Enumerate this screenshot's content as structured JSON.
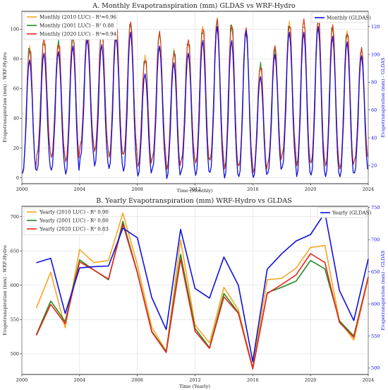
{
  "chart_data": [
    {
      "type": "line",
      "title": "A. Monthly Evapotranspiration (mm) GLDAS vs WRF-Hydro",
      "xlabel": "Time (Monthly)",
      "ylabel": "Evapotranspiration (mm) - WRF-Hydro",
      "ylabel_right": "Evapotranspiration (mm) - GLDAS",
      "x_ticks": [
        "2000",
        "2004",
        "2008",
        "2012",
        "2016",
        "2020",
        "2024"
      ],
      "y_ticks_left": [
        "0",
        "20",
        "40",
        "60",
        "80",
        "100"
      ],
      "y_ticks_right": [
        "20",
        "40",
        "60",
        "80",
        "100",
        "120"
      ],
      "xlim": [
        2000,
        2024
      ],
      "ylim_left": [
        -4,
        112
      ],
      "ylim_right": [
        7,
        131
      ],
      "legend_left": "top-left",
      "legend_right": "top-right",
      "grid": true,
      "series": [
        {
          "name": "Monthly (2010 LUC) - R²=0.96",
          "color": "#f5a623",
          "axis": "left"
        },
        {
          "name": "Monthly (2001 LUC) - R²  0.88",
          "color": "#1f8a1f",
          "axis": "left"
        },
        {
          "name": "Monthly (2020 LUC) - R²=0.94",
          "color": "#e8261e",
          "axis": "left"
        },
        {
          "name": "Monthly (GLDAS)",
          "color": "#1010e0",
          "axis": "right"
        }
      ],
      "annual_peaks_left": [
        88,
        93,
        91,
        96,
        99,
        100,
        103,
        104,
        81,
        97,
        86,
        92,
        102,
        106,
        104,
        100,
        76,
        88,
        104,
        106,
        108,
        102,
        99,
        86
      ],
      "annual_troughs_left": [
        1,
        14,
        12,
        9,
        20,
        16,
        12,
        14,
        6,
        12,
        4,
        10,
        8,
        10,
        4,
        6,
        2,
        8,
        14,
        6,
        8,
        6,
        4,
        10
      ],
      "annual_peaks_right": [
        96,
        101,
        102,
        106,
        111,
        107,
        113,
        116,
        86,
        106,
        94,
        101,
        110,
        120,
        110,
        117,
        84,
        100,
        116,
        116,
        120,
        113,
        109,
        99
      ],
      "annual_troughs_right": [
        13,
        15,
        15,
        12,
        24,
        18,
        16,
        14,
        11,
        16,
        9,
        14,
        11,
        13,
        9,
        10,
        10,
        13,
        17,
        10,
        11,
        10,
        10,
        13
      ]
    },
    {
      "type": "line",
      "title": "B. Yearly Evapotranspiration (mm) WRF-Hydro vs GLDAS",
      "xlabel": "Time (Yearly)",
      "ylabel": "Evapotranspiration (mm) - WRF-Hydro",
      "ylabel_right": "Evapotranspiration (mm) - GLDAS",
      "x_ticks": [
        "2000",
        "2004",
        "2008",
        "2012",
        "2016",
        "2020",
        "2024"
      ],
      "y_ticks_left": [
        "500",
        "550",
        "600",
        "650",
        "700"
      ],
      "y_ticks_right": [
        "500",
        "550",
        "600",
        "650",
        "700",
        "750"
      ],
      "xlim": [
        2000,
        2024
      ],
      "ylim_left": [
        470,
        715
      ],
      "ylim_right": [
        490,
        752
      ],
      "legend_left": "top-left",
      "legend_right": "top-right",
      "grid": true,
      "x": [
        2001,
        2002,
        2003,
        2004,
        2005,
        2006,
        2007,
        2008,
        2009,
        2010,
        2011,
        2012,
        2013,
        2014,
        2015,
        2016,
        2017,
        2018,
        2019,
        2020,
        2021,
        2022,
        2023,
        2024
      ],
      "series": [
        {
          "name": "Yearly (2010 LUC) - R²  0.90",
          "color": "#f5a623",
          "axis": "left",
          "values": [
            567,
            619,
            538,
            652,
            633,
            636,
            705,
            630,
            539,
            504,
            666,
            542,
            516,
            597,
            564,
            480,
            608,
            610,
            625,
            655,
            658,
            549,
            520,
            610
          ]
        },
        {
          "name": "Yearly (2001 LUC) - R²  0.80",
          "color": "#1f8a1f",
          "axis": "left",
          "values": [
            528,
            577,
            547,
            637,
            622,
            608,
            693,
            619,
            533,
            503,
            645,
            537,
            509,
            588,
            560,
            479,
            589,
            597,
            606,
            636,
            624,
            548,
            526,
            612
          ]
        },
        {
          "name": "Yearly (2020 LUC) - R²  0.83",
          "color": "#e8261e",
          "axis": "left",
          "values": [
            527,
            572,
            544,
            634,
            622,
            609,
            689,
            618,
            532,
            502,
            638,
            533,
            508,
            583,
            559,
            478,
            588,
            601,
            615,
            646,
            633,
            546,
            524,
            612
          ]
        },
        {
          "name": "Yearly (GLDAS)",
          "color": "#1010e0",
          "axis": "right",
          "values": [
            664,
            671,
            585,
            656,
            658,
            659,
            718,
            703,
            610,
            560,
            716,
            624,
            609,
            673,
            629,
            510,
            654,
            678,
            698,
            708,
            742,
            621,
            574,
            670
          ]
        }
      ]
    }
  ]
}
